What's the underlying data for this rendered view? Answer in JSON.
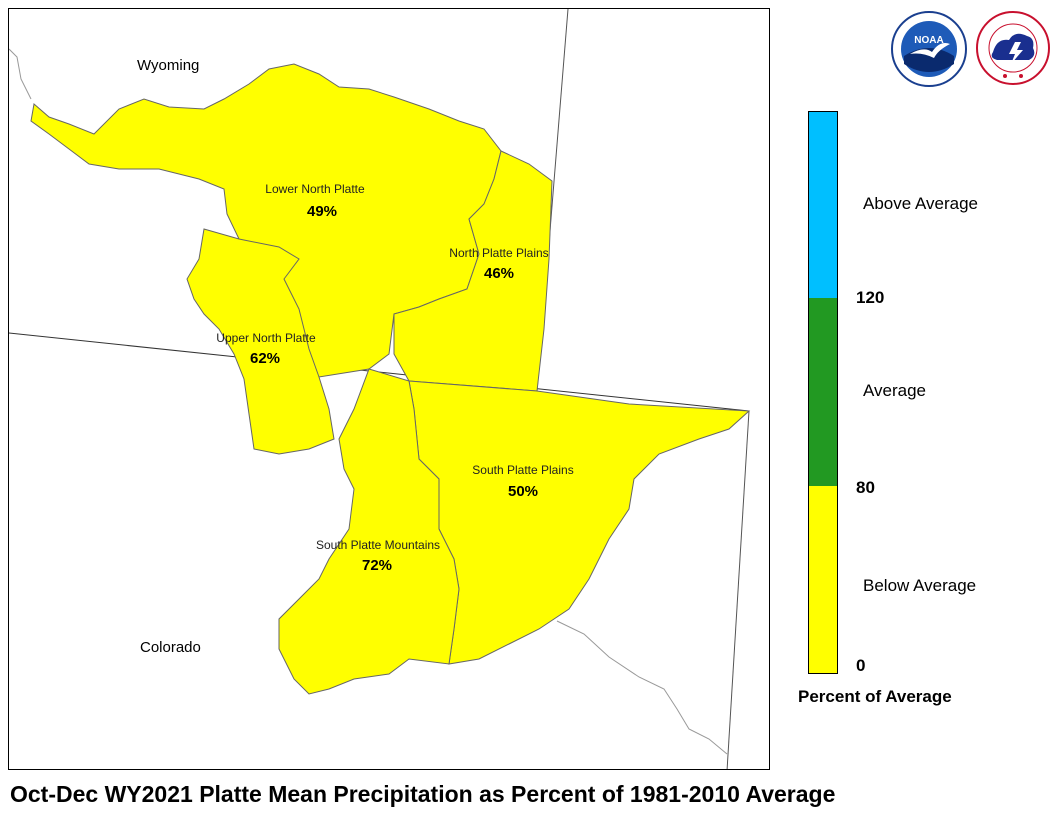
{
  "title": "Oct-Dec WY2021 Platte Mean Precipitation as Percent of 1981-2010 Average",
  "states": [
    {
      "name": "Wyoming"
    },
    {
      "name": "Colorado"
    }
  ],
  "basins": [
    {
      "name": "Lower North Platte",
      "value": "49%"
    },
    {
      "name": "North Platte Plains",
      "value": "46%"
    },
    {
      "name": "Upper North Platte",
      "value": "62%"
    },
    {
      "name": "South Platte Plains",
      "value": "50%"
    },
    {
      "name": "South Platte Mountains",
      "value": "72%"
    }
  ],
  "legend": {
    "title": "Percent of Average",
    "categories": [
      {
        "label": "Above Average",
        "color": "#00bfff"
      },
      {
        "label": "Average",
        "color": "#229922"
      },
      {
        "label": "Below Average",
        "color": "#ffff00"
      }
    ],
    "ticks": [
      "120",
      "80",
      "0"
    ]
  },
  "logos": {
    "noaa": {
      "text": "NOAA",
      "icon": "noaa-logo-icon"
    },
    "nws": {
      "icon": "nws-logo-icon"
    }
  },
  "colors": {
    "basin_fill": "#ffff00",
    "basin_border": "#666666"
  }
}
